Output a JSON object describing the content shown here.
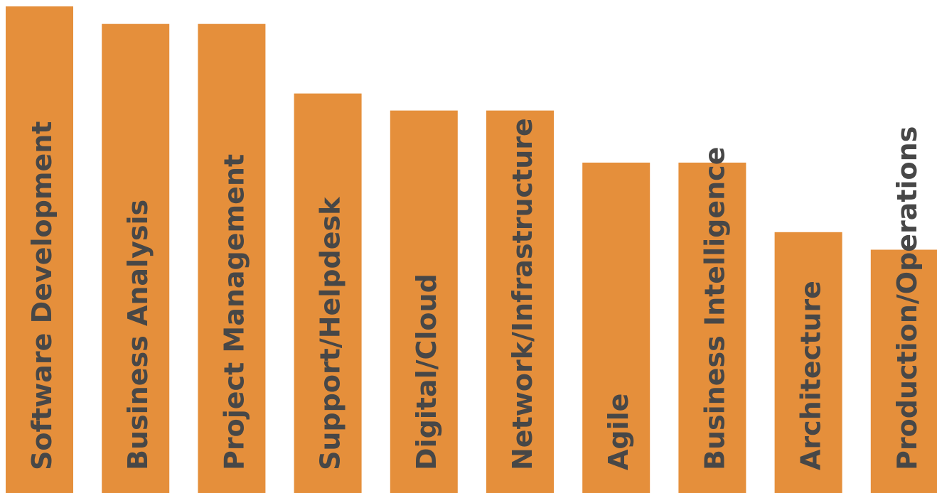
{
  "chart_data": {
    "type": "bar",
    "orientation": "vertical",
    "bar_color": "#e58f3b",
    "label_color": "#474747",
    "label_placement": "inside-bar-rotated",
    "axes_visible": false,
    "grid": false,
    "legend": "none",
    "ylim": [
      0,
      100
    ],
    "categories": [
      "Software Development",
      "Business Analysis",
      "Project Management",
      "Support/Helpdesk",
      "Digital/Cloud",
      "Network/Infrastructure",
      "Agile",
      "Business Intelligence",
      "Architecture",
      "Production/Operations"
    ],
    "values": [
      100,
      96.4,
      96.4,
      82.1,
      78.6,
      78.6,
      67.9,
      67.9,
      53.6,
      50.0
    ]
  }
}
